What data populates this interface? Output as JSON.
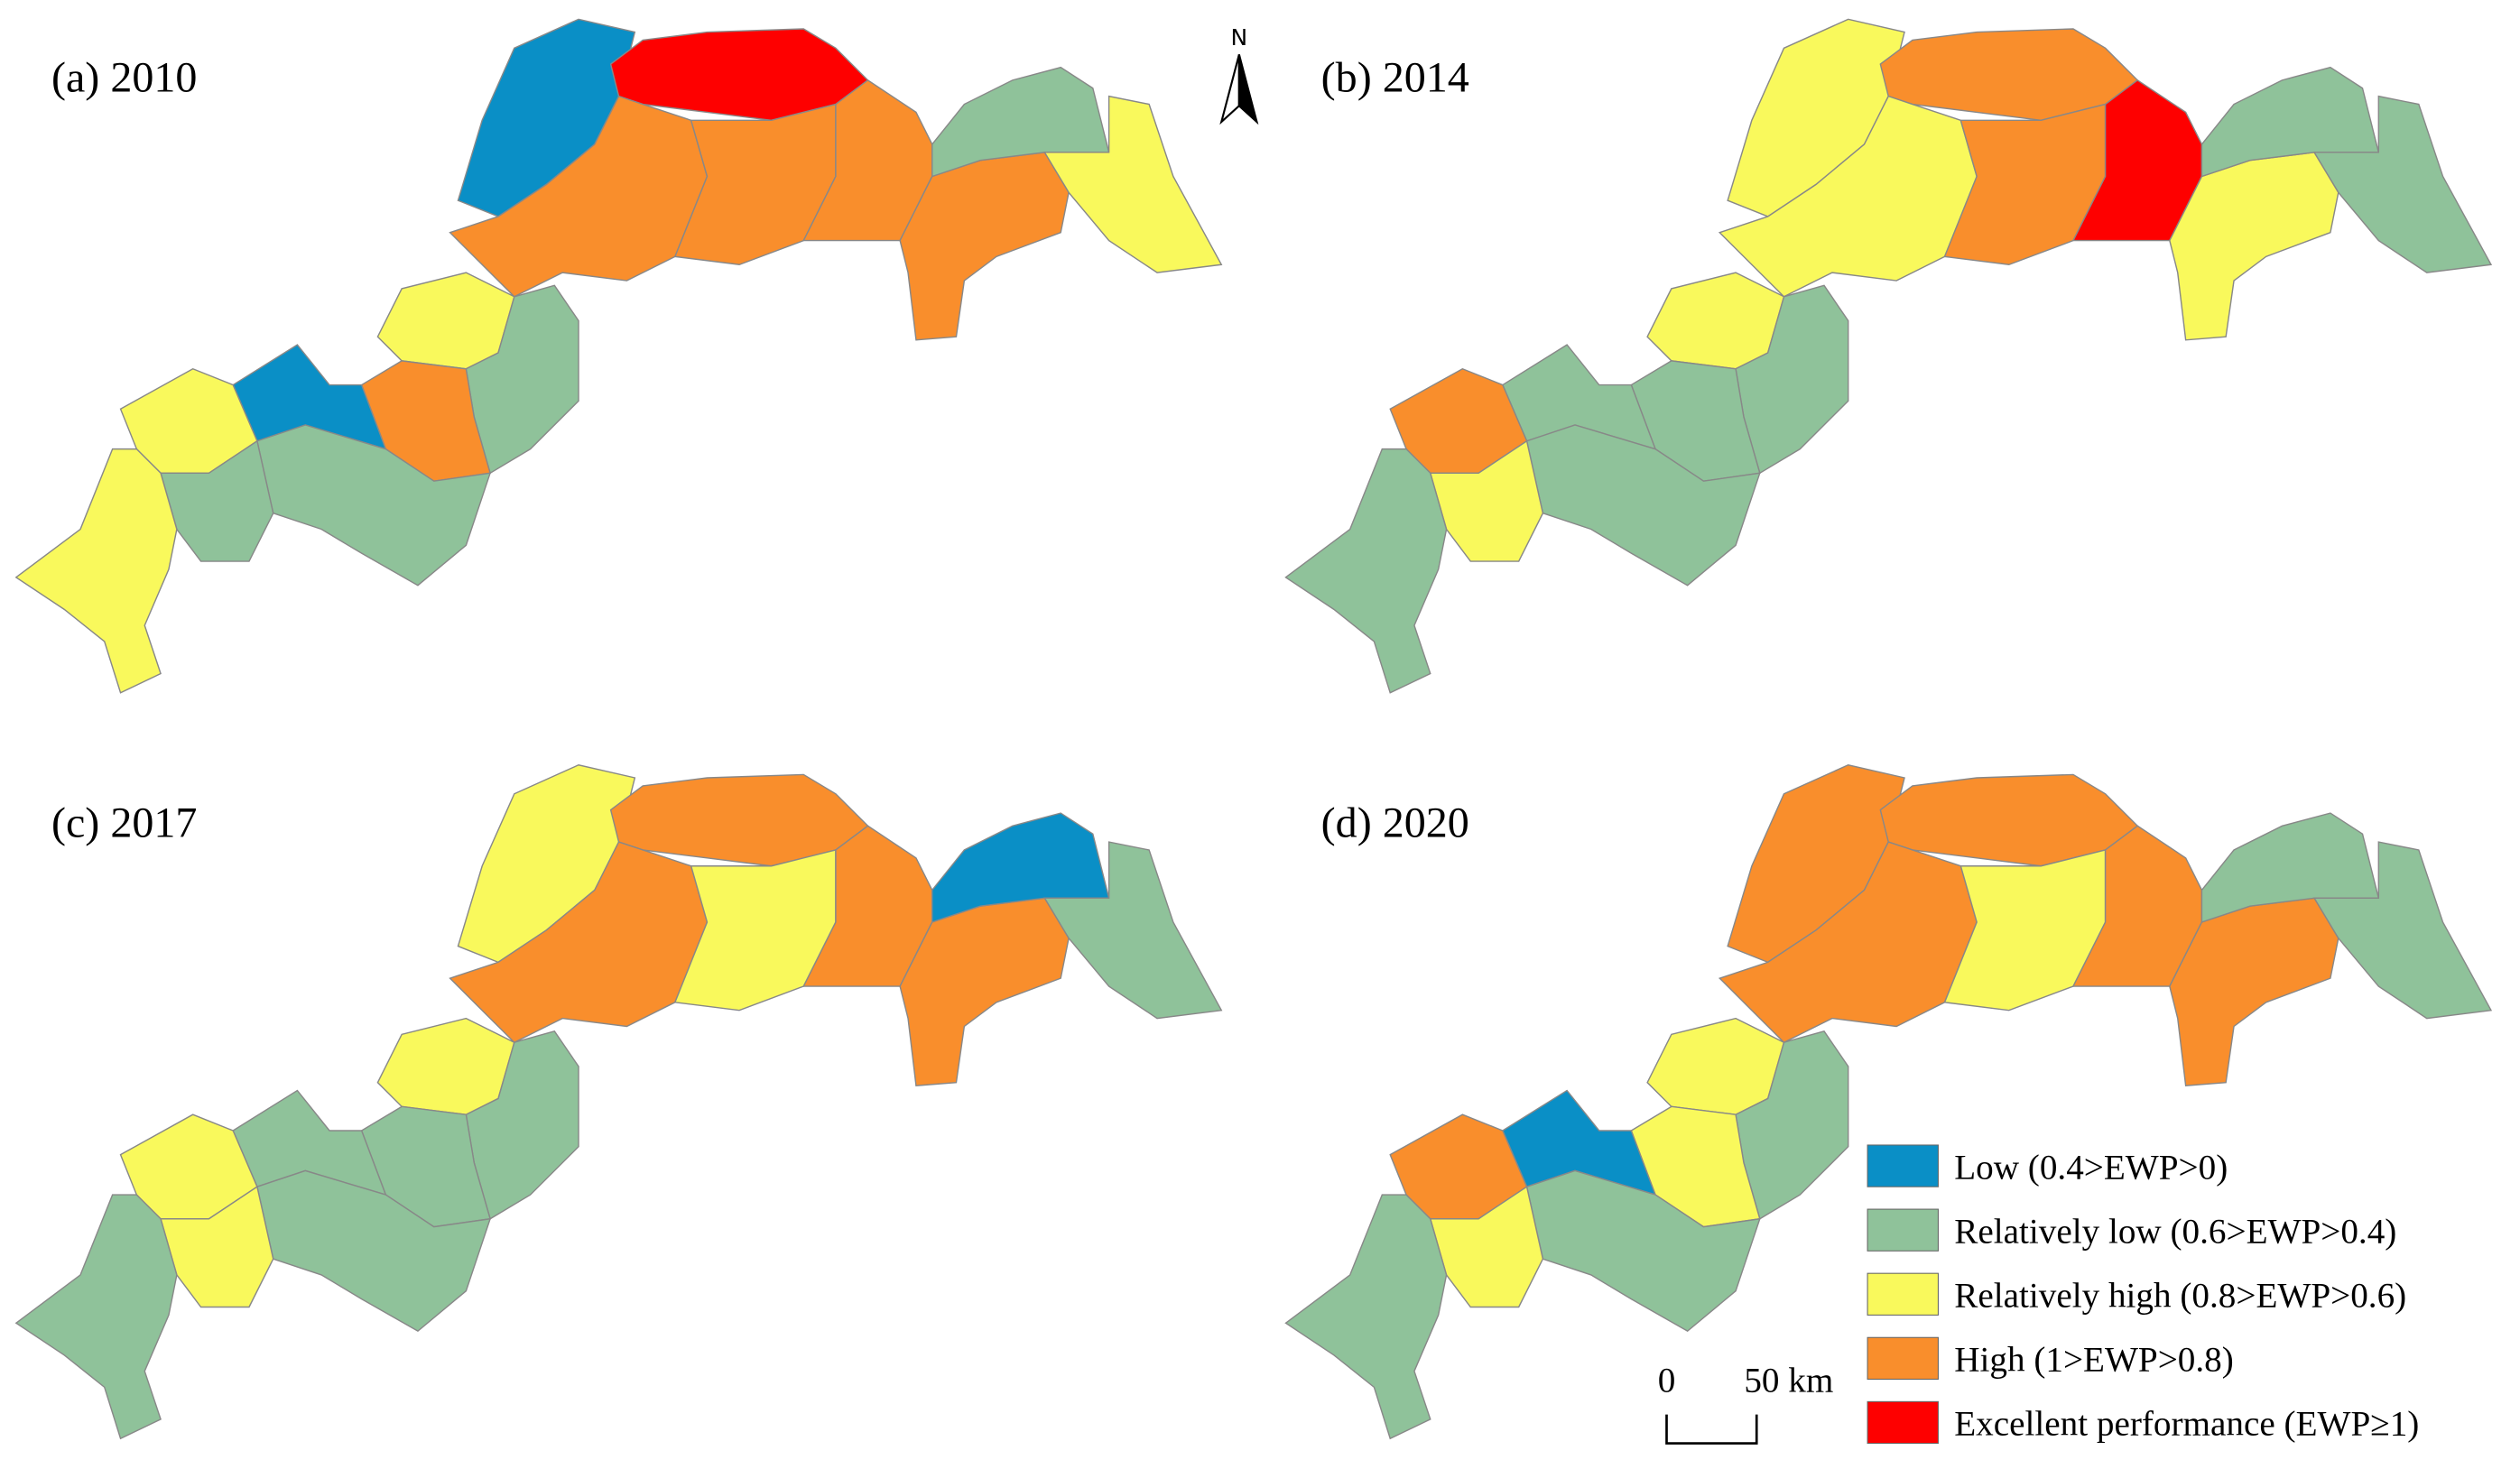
{
  "panels": [
    {
      "label": "(a) 2010"
    },
    {
      "label": "(b) 2014"
    },
    {
      "label": "(c) 2017"
    },
    {
      "label": "(d) 2020"
    }
  ],
  "north_label": "N",
  "legend": [
    {
      "label": "Low (0.4>EWP>0)",
      "color": "#0a8fc6"
    },
    {
      "label": "Relatively low (0.6>EWP>0.4)",
      "color": "#8fc29a"
    },
    {
      "label": "Relatively high (0.8>EWP>0.6)",
      "color": "#f9f95c"
    },
    {
      "label": "High (1>EWP>0.8)",
      "color": "#f98e2c"
    },
    {
      "label": "Excellent performance (EWP≥1)",
      "color": "#fe0000"
    }
  ],
  "scale_bar": {
    "labels": [
      "0",
      "50 km"
    ]
  }
}
